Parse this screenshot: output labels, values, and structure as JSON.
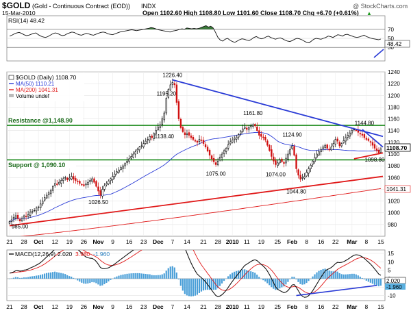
{
  "header": {
    "symbol": "$GOLD",
    "name": "(Gold - Continuous Contract (EOD))",
    "exchange": "INDX",
    "date": "15-Mar-2010",
    "ohlc": "Open 1102.60  High 1108.80  Low 1101.60  Close 1108.70  Chg +6.70 (+0.61%)",
    "chg_marker": "▲",
    "watermark": "@ StockCharts.com"
  },
  "rsi": {
    "legend": "RSI(14) 48.42",
    "last_value": "48.42",
    "ticks": [
      "70",
      "50",
      "30"
    ],
    "values": [
      55,
      57,
      60,
      62,
      63,
      61,
      58,
      56,
      57,
      59,
      61,
      62,
      58,
      55,
      53,
      52,
      54,
      57,
      60,
      62,
      61,
      58,
      56,
      57,
      60,
      62,
      64,
      63,
      60,
      58,
      57,
      59,
      61,
      60,
      58,
      57,
      59,
      61,
      63,
      64,
      63,
      60,
      59,
      58,
      60,
      62,
      64,
      65,
      66,
      67,
      68,
      69,
      68,
      67,
      68,
      69,
      70,
      71,
      72,
      74,
      73,
      71,
      69,
      68,
      67,
      66,
      65,
      64,
      66,
      67,
      68,
      70,
      71,
      70,
      73,
      72,
      71,
      72,
      71,
      72,
      74,
      76,
      78,
      75,
      77,
      73,
      63,
      52,
      46,
      44,
      48,
      50,
      46,
      43,
      41,
      44,
      47,
      49,
      48,
      46,
      45,
      48,
      52,
      54,
      51,
      49,
      50,
      53,
      55,
      52,
      50,
      48,
      50,
      51,
      49,
      46,
      44,
      43,
      45,
      48,
      50,
      49,
      47,
      44,
      41,
      40,
      44,
      48,
      50,
      49,
      48,
      50,
      52,
      55,
      54,
      52,
      55,
      58,
      57,
      55,
      58,
      59,
      57,
      55,
      53,
      52,
      53,
      55,
      57,
      54,
      52,
      50,
      49,
      48,
      47,
      48.42
    ],
    "upper": 70,
    "lower": 30
  },
  "price_legend": {
    "title": "$GOLD (Daily) 1108.70",
    "ma50": "MA(50) 1110.21",
    "ma200": "MA(200) 1041.31",
    "volume": "Volume undef"
  },
  "levels": {
    "resistance_label": "Resistance @1,148.90",
    "support_label": "Support @ 1,090.10",
    "resistance": 1148.9,
    "support": 1090.1
  },
  "annotations": [
    {
      "text": "1226.40",
      "index": 79,
      "price": 1226.4,
      "where": "above"
    },
    {
      "text": "1195.20",
      "index": 76,
      "price": 1195.2,
      "where": "above"
    },
    {
      "text": "1138.40",
      "index": 75,
      "price": 1138.4,
      "where": "below"
    },
    {
      "text": "1161.80",
      "index": 118,
      "price": 1161.8,
      "where": "above"
    },
    {
      "text": "1075.00",
      "index": 100,
      "price": 1075,
      "where": "below"
    },
    {
      "text": "1124.90",
      "index": 137,
      "price": 1124.9,
      "where": "above"
    },
    {
      "text": "1074.00",
      "index": 129,
      "price": 1074,
      "where": "below"
    },
    {
      "text": "1044.80",
      "index": 139,
      "price": 1044.8,
      "where": "below"
    },
    {
      "text": "1144.80",
      "index": 172,
      "price": 1144.8,
      "where": "above"
    },
    {
      "text": "1098.80",
      "index": 177,
      "price": 1098.8,
      "where": "below"
    },
    {
      "text": "1026.50",
      "index": 43,
      "price": 1026.5,
      "where": "below"
    },
    {
      "text": "985.00",
      "index": 5,
      "price": 985,
      "where": "below"
    }
  ],
  "macd": {
    "legend_label": "MACD(12,26,9)",
    "legend_macd": "2.020",
    "legend_signal": "3.980",
    "legend_hist": "-1.960",
    "last_macd": "2.020",
    "last_hist": "-1.960",
    "ticks": [
      "15",
      "10",
      "5",
      "0",
      "-5",
      "-10"
    ]
  },
  "x_axis_labels": [
    "21",
    "28",
    "Oct",
    "12",
    "19",
    "26",
    "Nov",
    "9",
    "16",
    "23",
    "Dec",
    "7",
    "14",
    "21",
    "28",
    "2010",
    "11",
    "19",
    "25",
    "Feb",
    "8",
    "16",
    "22",
    "Mar",
    "8",
    "15"
  ],
  "chart_data": {
    "type": "candlestick",
    "symbol": "$GOLD",
    "period": "Daily",
    "price_range": [
      960,
      1240
    ],
    "price_ticks": [
      "1240",
      "1220",
      "1200",
      "1180",
      "1160",
      "1140",
      "1120",
      "1100",
      "1080",
      "1060",
      "1040",
      "1020",
      "1000",
      "980"
    ],
    "close": [
      985,
      988,
      992,
      995,
      990,
      986,
      991,
      995,
      993,
      997,
      1001,
      1002,
      1004,
      1008,
      1010,
      1015,
      1020,
      1026,
      1030,
      1034,
      1038,
      1045,
      1050,
      1048,
      1052,
      1055,
      1058,
      1060,
      1056,
      1059,
      1062,
      1057,
      1055,
      1053,
      1050,
      1048,
      1046,
      1049,
      1052,
      1055,
      1058,
      1052,
      1045,
      1037,
      1030,
      1040,
      1046,
      1050,
      1054,
      1058,
      1062,
      1066,
      1070,
      1073,
      1077,
      1080,
      1084,
      1088,
      1092,
      1096,
      1100,
      1104,
      1108,
      1112,
      1114,
      1118,
      1122,
      1125,
      1130,
      1128,
      1135,
      1140,
      1146,
      1150,
      1160,
      1170,
      1195,
      1210,
      1218,
      1222,
      1218,
      1188,
      1160,
      1145,
      1138,
      1133,
      1135,
      1132,
      1128,
      1125,
      1122,
      1120,
      1125,
      1123,
      1118,
      1112,
      1105,
      1098,
      1092,
      1087,
      1082,
      1088,
      1095,
      1100,
      1106,
      1110,
      1116,
      1121,
      1124,
      1127,
      1129,
      1133,
      1139,
      1143,
      1146,
      1142,
      1145,
      1148,
      1150,
      1148,
      1140,
      1132,
      1130,
      1128,
      1124,
      1115,
      1106,
      1096,
      1088,
      1082,
      1085,
      1090,
      1087,
      1084,
      1093,
      1100,
      1108,
      1114,
      1098,
      1075,
      1064,
      1057,
      1060,
      1062,
      1069,
      1075,
      1081,
      1088,
      1094,
      1100,
      1104,
      1108,
      1112,
      1115,
      1110,
      1107,
      1112,
      1118,
      1125,
      1122,
      1114,
      1118,
      1123,
      1128,
      1132,
      1136,
      1140,
      1142,
      1140,
      1137,
      1134,
      1132,
      1128,
      1125,
      1123,
      1120,
      1115,
      1110,
      1106,
      1102,
      1108.7
    ],
    "ohlc_last": {
      "open": 1102.6,
      "high": 1108.8,
      "low": 1101.6,
      "close": 1108.7,
      "chg": 6.7,
      "chg_pct": 0.61
    },
    "ma50_last": 1110.21,
    "ma200_last": 1041.31,
    "resistance": 1148.9,
    "support": 1090.1,
    "trendlines": [
      {
        "name": "upper",
        "color": "#2a3bd6",
        "from": [
          79,
          1226.4
        ],
        "to": [
          181,
          1130
        ]
      },
      {
        "name": "short-term",
        "color": "#2a3bd6",
        "from": [
          171,
          1142
        ],
        "to": [
          181,
          1112
        ]
      },
      {
        "name": "lower",
        "color": "#e01818",
        "from": [
          0,
          978
        ],
        "to": [
          181,
          1062
        ]
      },
      {
        "name": "short-support",
        "color": "#e01818",
        "from": [
          167,
          1092
        ],
        "to": [
          181,
          1102
        ]
      }
    ],
    "rsi_range": [
      0,
      100
    ],
    "macd_range": [
      -13,
      17
    ],
    "xlabel": "",
    "ylabel": ""
  }
}
